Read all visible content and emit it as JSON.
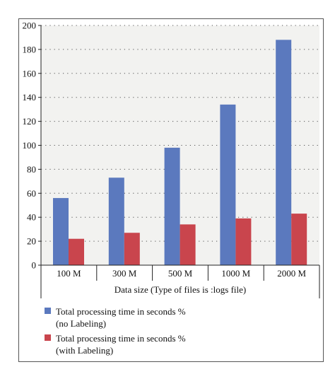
{
  "chart_data": {
    "type": "bar",
    "categories": [
      "100 M",
      "300 M",
      "500 M",
      "1000 M",
      "2000 M"
    ],
    "series": [
      {
        "name": "Total processing time in seconds % (no Labeling)",
        "legend_lines": [
          "Total processing time in seconds %",
          "(no Labeling)"
        ],
        "color": "#5b79be",
        "values": [
          56,
          73,
          98,
          134,
          188
        ]
      },
      {
        "name": "Total processing time in seconds % (with Labeling)",
        "legend_lines": [
          "Total processing time in seconds %",
          "(with Labeling)"
        ],
        "color": "#c9454d",
        "values": [
          22,
          27,
          34,
          39,
          43
        ]
      }
    ],
    "xlabel": "Data size (Type of files is :logs file)",
    "ylabel": "",
    "ylim": [
      0,
      200
    ],
    "yticks": [
      0,
      20,
      40,
      60,
      80,
      100,
      120,
      140,
      160,
      180,
      200
    ],
    "grid": true,
    "legend_position": "bottom"
  }
}
